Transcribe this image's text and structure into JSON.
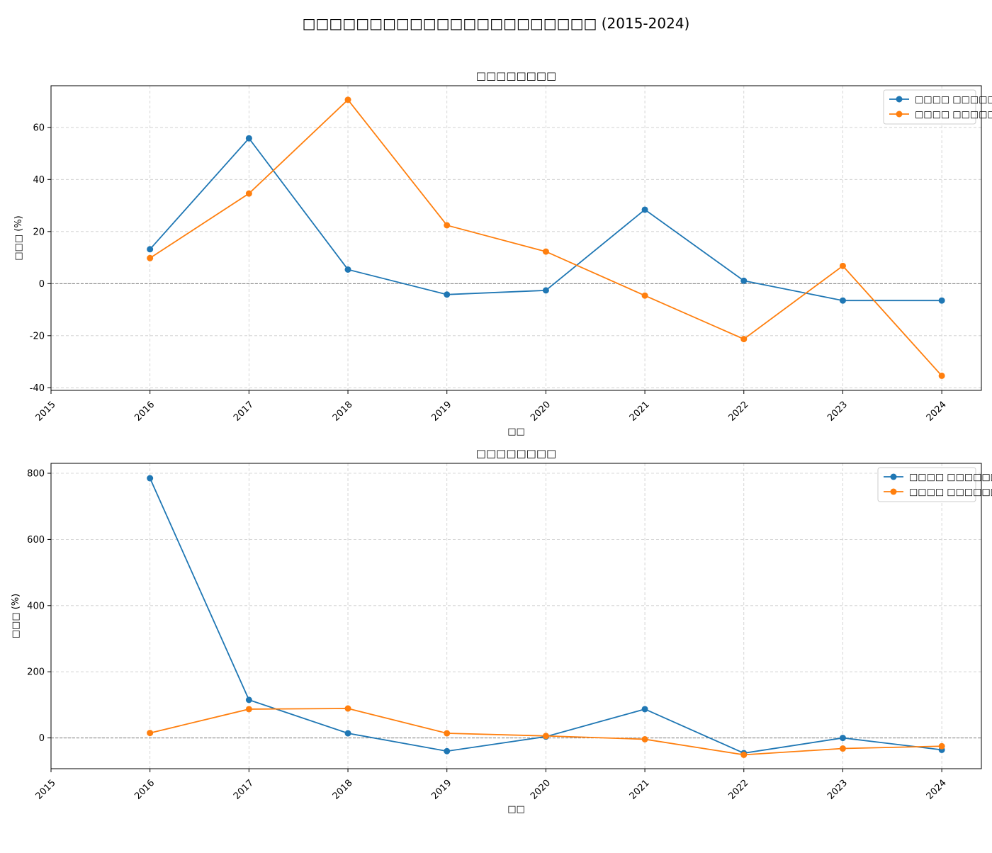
{
  "figure": {
    "title": "□□□□□□□□□□□□□□□□□□□□□□ (2015-2024)"
  },
  "chart_data": [
    {
      "type": "line",
      "title": "□□□□□□□□",
      "xlabel": "□□",
      "ylabel": "□□□ (%)",
      "x": [
        2016,
        2017,
        2018,
        2019,
        2020,
        2021,
        2022,
        2023,
        2024
      ],
      "xticks": [
        2015,
        2016,
        2017,
        2018,
        2019,
        2020,
        2021,
        2022,
        2023,
        2024
      ],
      "yticks": [
        -40,
        -20,
        0,
        20,
        40,
        60
      ],
      "xlim": [
        2015,
        2024.4
      ],
      "ylim": [
        -41,
        76
      ],
      "grid": true,
      "zero_line": true,
      "legend_position": "top-right",
      "series": [
        {
          "name": "□□□□ □□□□□",
          "color": "#1f77b4",
          "values": [
            13.2,
            55.8,
            5.4,
            -4.2,
            -2.6,
            28.4,
            1.1,
            -6.5,
            -6.5
          ]
        },
        {
          "name": "□□□□ □□□□□",
          "color": "#ff7f0e",
          "values": [
            9.8,
            34.6,
            70.6,
            22.4,
            12.3,
            -4.6,
            -21.3,
            6.8,
            -35.4
          ]
        }
      ]
    },
    {
      "type": "line",
      "title": "□□□□□□□□",
      "xlabel": "□□",
      "ylabel": "□□□ (%)",
      "x": [
        2016,
        2017,
        2018,
        2019,
        2020,
        2021,
        2022,
        2023,
        2024
      ],
      "xticks": [
        2015,
        2016,
        2017,
        2018,
        2019,
        2020,
        2021,
        2022,
        2023,
        2024
      ],
      "yticks": [
        0,
        200,
        400,
        600,
        800
      ],
      "xlim": [
        2015,
        2024.4
      ],
      "ylim": [
        -93,
        830
      ],
      "grid": true,
      "zero_line": true,
      "legend_position": "top-right",
      "series": [
        {
          "name": "□□□□ □□□□□□",
          "color": "#1f77b4",
          "values": [
            785,
            115,
            14,
            -40,
            4,
            87,
            -46,
            0,
            -36
          ]
        },
        {
          "name": "□□□□ □□□□□□",
          "color": "#ff7f0e",
          "values": [
            15,
            87,
            89,
            14,
            6,
            -4,
            -51,
            -32,
            -25
          ]
        }
      ]
    }
  ]
}
